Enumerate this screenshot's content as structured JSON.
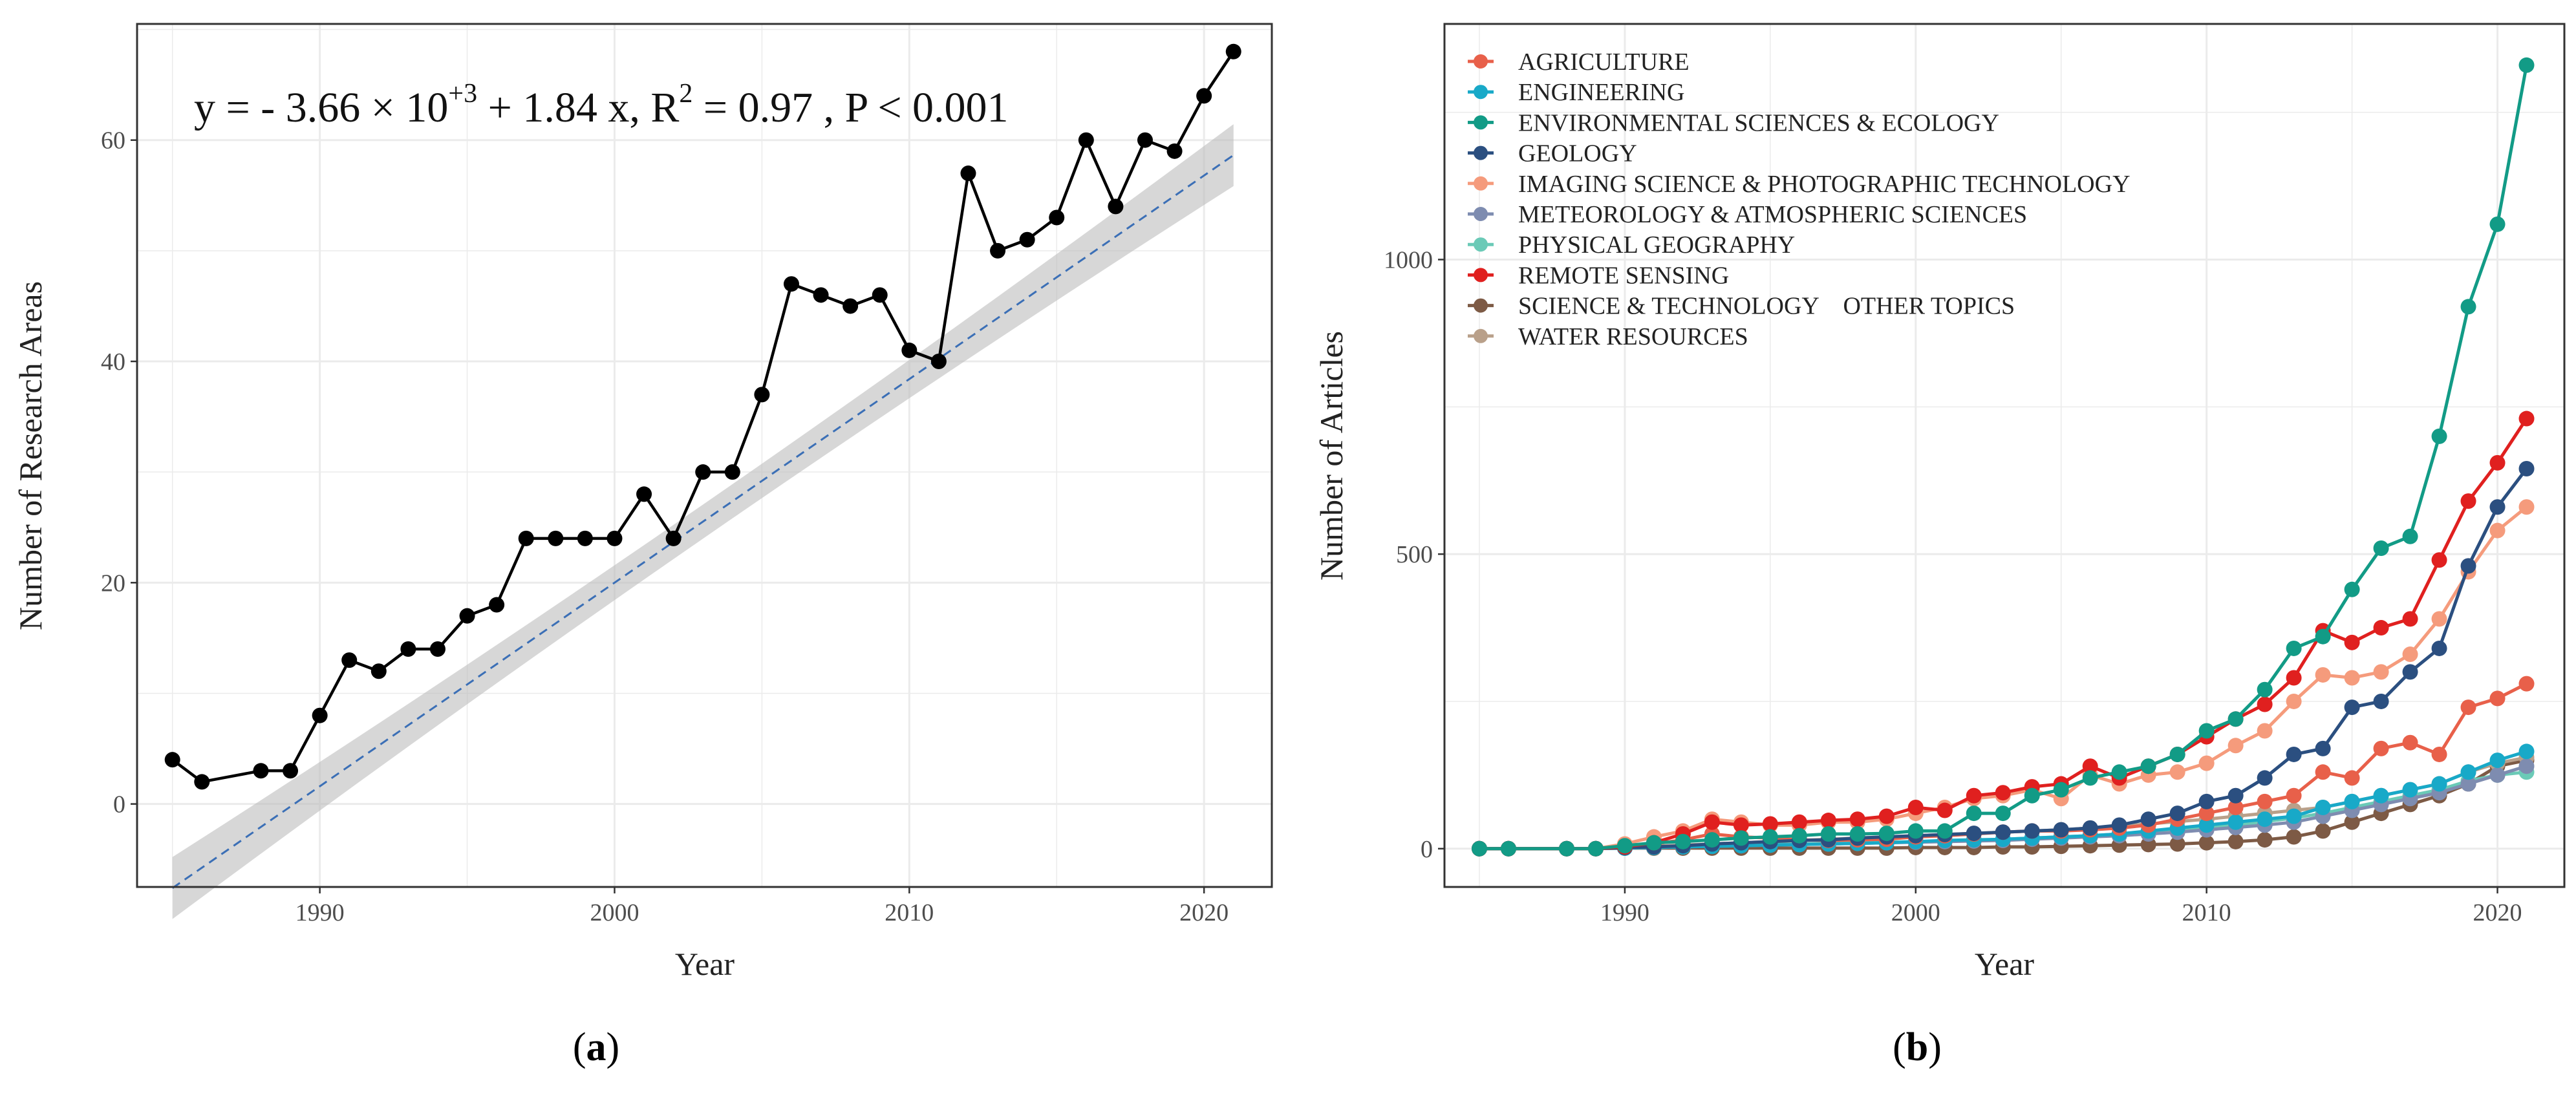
{
  "chart_data": [
    {
      "type": "line",
      "panel_label": "a",
      "xlabel": "Year",
      "ylabel": "Number of Research Areas",
      "xlim": [
        1983.8,
        2022.3
      ],
      "ylim": [
        -7.5,
        70.5
      ],
      "xticks": [
        1990,
        2000,
        2010,
        2020
      ],
      "yticks": [
        0,
        20,
        40,
        60
      ],
      "grid": true,
      "equation": {
        "part1": "y = - 3.66 × 10",
        "exp1": "+3",
        "part2": " + 1.84  x, R",
        "exp2": "2",
        "part3": " = 0.97 , P  <  0.001"
      },
      "trend": {
        "intercept": -3660,
        "slope": 1.84,
        "band_halfwidth": 2.8,
        "color": "#3b6fb6"
      },
      "series": [
        {
          "name": "Number of Research Areas",
          "color": "#000000",
          "x": [
            1985,
            1986,
            1988,
            1989,
            1990,
            1991,
            1992,
            1993,
            1994,
            1995,
            1996,
            1997,
            1998,
            1999,
            2000,
            2001,
            2002,
            2003,
            2004,
            2005,
            2006,
            2007,
            2008,
            2009,
            2010,
            2011,
            2012,
            2013,
            2014,
            2015,
            2016,
            2017,
            2018,
            2019,
            2020,
            2021
          ],
          "values": [
            4,
            2,
            3,
            3,
            8,
            13,
            12,
            14,
            14,
            17,
            18,
            24,
            24,
            24,
            24,
            28,
            24,
            30,
            30,
            37,
            47,
            46,
            45,
            46,
            41,
            40,
            57,
            50,
            51,
            53,
            60,
            54,
            60,
            59,
            64,
            68
          ]
        }
      ]
    },
    {
      "type": "line",
      "panel_label": "b",
      "xlabel": "Year",
      "ylabel": "Number of Articles",
      "xlim": [
        1983.8,
        2022.3
      ],
      "ylim": [
        -65,
        1400
      ],
      "xticks": [
        1990,
        2000,
        2010,
        2020
      ],
      "yticks": [
        0,
        500,
        1000
      ],
      "grid": true,
      "legend_position": "top-left",
      "x": [
        1985,
        1986,
        1988,
        1989,
        1990,
        1991,
        1992,
        1993,
        1994,
        1995,
        1996,
        1997,
        1998,
        1999,
        2000,
        2001,
        2002,
        2003,
        2004,
        2005,
        2006,
        2007,
        2008,
        2009,
        2010,
        2011,
        2012,
        2013,
        2014,
        2015,
        2016,
        2017,
        2018,
        2019,
        2020,
        2021
      ],
      "series": [
        {
          "name": "AGRICULTURE",
          "color": "#e8604a",
          "values": [
            0,
            0,
            0,
            0,
            2,
            8,
            15,
            25,
            20,
            18,
            15,
            14,
            15,
            16,
            20,
            22,
            25,
            28,
            30,
            30,
            32,
            35,
            40,
            50,
            60,
            70,
            80,
            90,
            130,
            120,
            170,
            180,
            160,
            240,
            255,
            280
          ]
        },
        {
          "name": "ENGINEERING",
          "color": "#18a9c8",
          "values": [
            0,
            0,
            0,
            0,
            1,
            2,
            3,
            4,
            5,
            6,
            7,
            8,
            9,
            10,
            12,
            14,
            15,
            16,
            18,
            20,
            22,
            25,
            30,
            35,
            40,
            45,
            50,
            55,
            70,
            80,
            90,
            100,
            110,
            130,
            150,
            165
          ]
        },
        {
          "name": "ENVIRONMENTAL SCIENCES & ECOLOGY",
          "color": "#129b86",
          "values": [
            0,
            0,
            0,
            0,
            5,
            10,
            12,
            15,
            18,
            20,
            22,
            25,
            25,
            26,
            30,
            30,
            60,
            60,
            90,
            100,
            120,
            130,
            140,
            160,
            200,
            220,
            270,
            340,
            360,
            440,
            510,
            530,
            700,
            920,
            1060,
            1330
          ]
        },
        {
          "name": "GEOLOGY",
          "color": "#2b4f80",
          "values": [
            0,
            0,
            0,
            0,
            2,
            3,
            5,
            8,
            10,
            12,
            14,
            15,
            18,
            20,
            22,
            24,
            26,
            28,
            30,
            32,
            35,
            40,
            50,
            60,
            80,
            90,
            120,
            160,
            170,
            240,
            250,
            300,
            340,
            480,
            580,
            645
          ]
        },
        {
          "name": "IMAGING SCIENCE & PHOTOGRAPHIC TECHNOLOGY",
          "color": "#f59b7c",
          "values": [
            0,
            0,
            0,
            0,
            8,
            20,
            30,
            50,
            45,
            40,
            40,
            45,
            45,
            50,
            60,
            70,
            85,
            90,
            100,
            85,
            125,
            110,
            125,
            130,
            145,
            175,
            200,
            250,
            295,
            290,
            300,
            330,
            390,
            470,
            540,
            580
          ]
        },
        {
          "name": "METEOROLOGY & ATMOSPHERIC SCIENCES",
          "color": "#7e8cb0",
          "values": [
            0,
            0,
            0,
            0,
            1,
            2,
            3,
            4,
            5,
            6,
            7,
            8,
            9,
            10,
            11,
            12,
            13,
            14,
            16,
            18,
            20,
            22,
            25,
            28,
            32,
            36,
            40,
            45,
            55,
            65,
            75,
            85,
            95,
            110,
            125,
            140
          ]
        },
        {
          "name": "PHYSICAL GEOGRAPHY",
          "color": "#6bcab7",
          "values": [
            0,
            0,
            0,
            0,
            1,
            2,
            3,
            5,
            6,
            7,
            8,
            9,
            10,
            11,
            12,
            13,
            14,
            16,
            18,
            20,
            22,
            25,
            28,
            32,
            36,
            40,
            46,
            52,
            60,
            70,
            80,
            90,
            100,
            115,
            125,
            130
          ]
        },
        {
          "name": "REMOTE SENSING",
          "color": "#e0201f",
          "values": [
            0,
            0,
            0,
            0,
            3,
            10,
            25,
            45,
            40,
            42,
            45,
            48,
            50,
            55,
            70,
            65,
            90,
            95,
            105,
            110,
            140,
            120,
            140,
            160,
            190,
            220,
            245,
            290,
            370,
            350,
            375,
            390,
            490,
            590,
            655,
            730
          ]
        },
        {
          "name": "SCIENCE & TECHNOLOGY    OTHER TOPICS",
          "color": "#7d5a45",
          "values": [
            0,
            0,
            0,
            0,
            1,
            1,
            1,
            1,
            1,
            1,
            1,
            1,
            1,
            1,
            2,
            2,
            2,
            3,
            3,
            4,
            5,
            6,
            7,
            8,
            10,
            12,
            15,
            20,
            30,
            45,
            60,
            75,
            90,
            110,
            140,
            150
          ]
        },
        {
          "name": "WATER RESOURCES",
          "color": "#b9a08a",
          "values": [
            0,
            0,
            0,
            0,
            2,
            4,
            6,
            8,
            10,
            12,
            14,
            16,
            18,
            20,
            22,
            24,
            26,
            28,
            30,
            32,
            35,
            38,
            42,
            46,
            50,
            55,
            60,
            65,
            70,
            80,
            90,
            100,
            110,
            130,
            145,
            155
          ]
        }
      ]
    }
  ]
}
